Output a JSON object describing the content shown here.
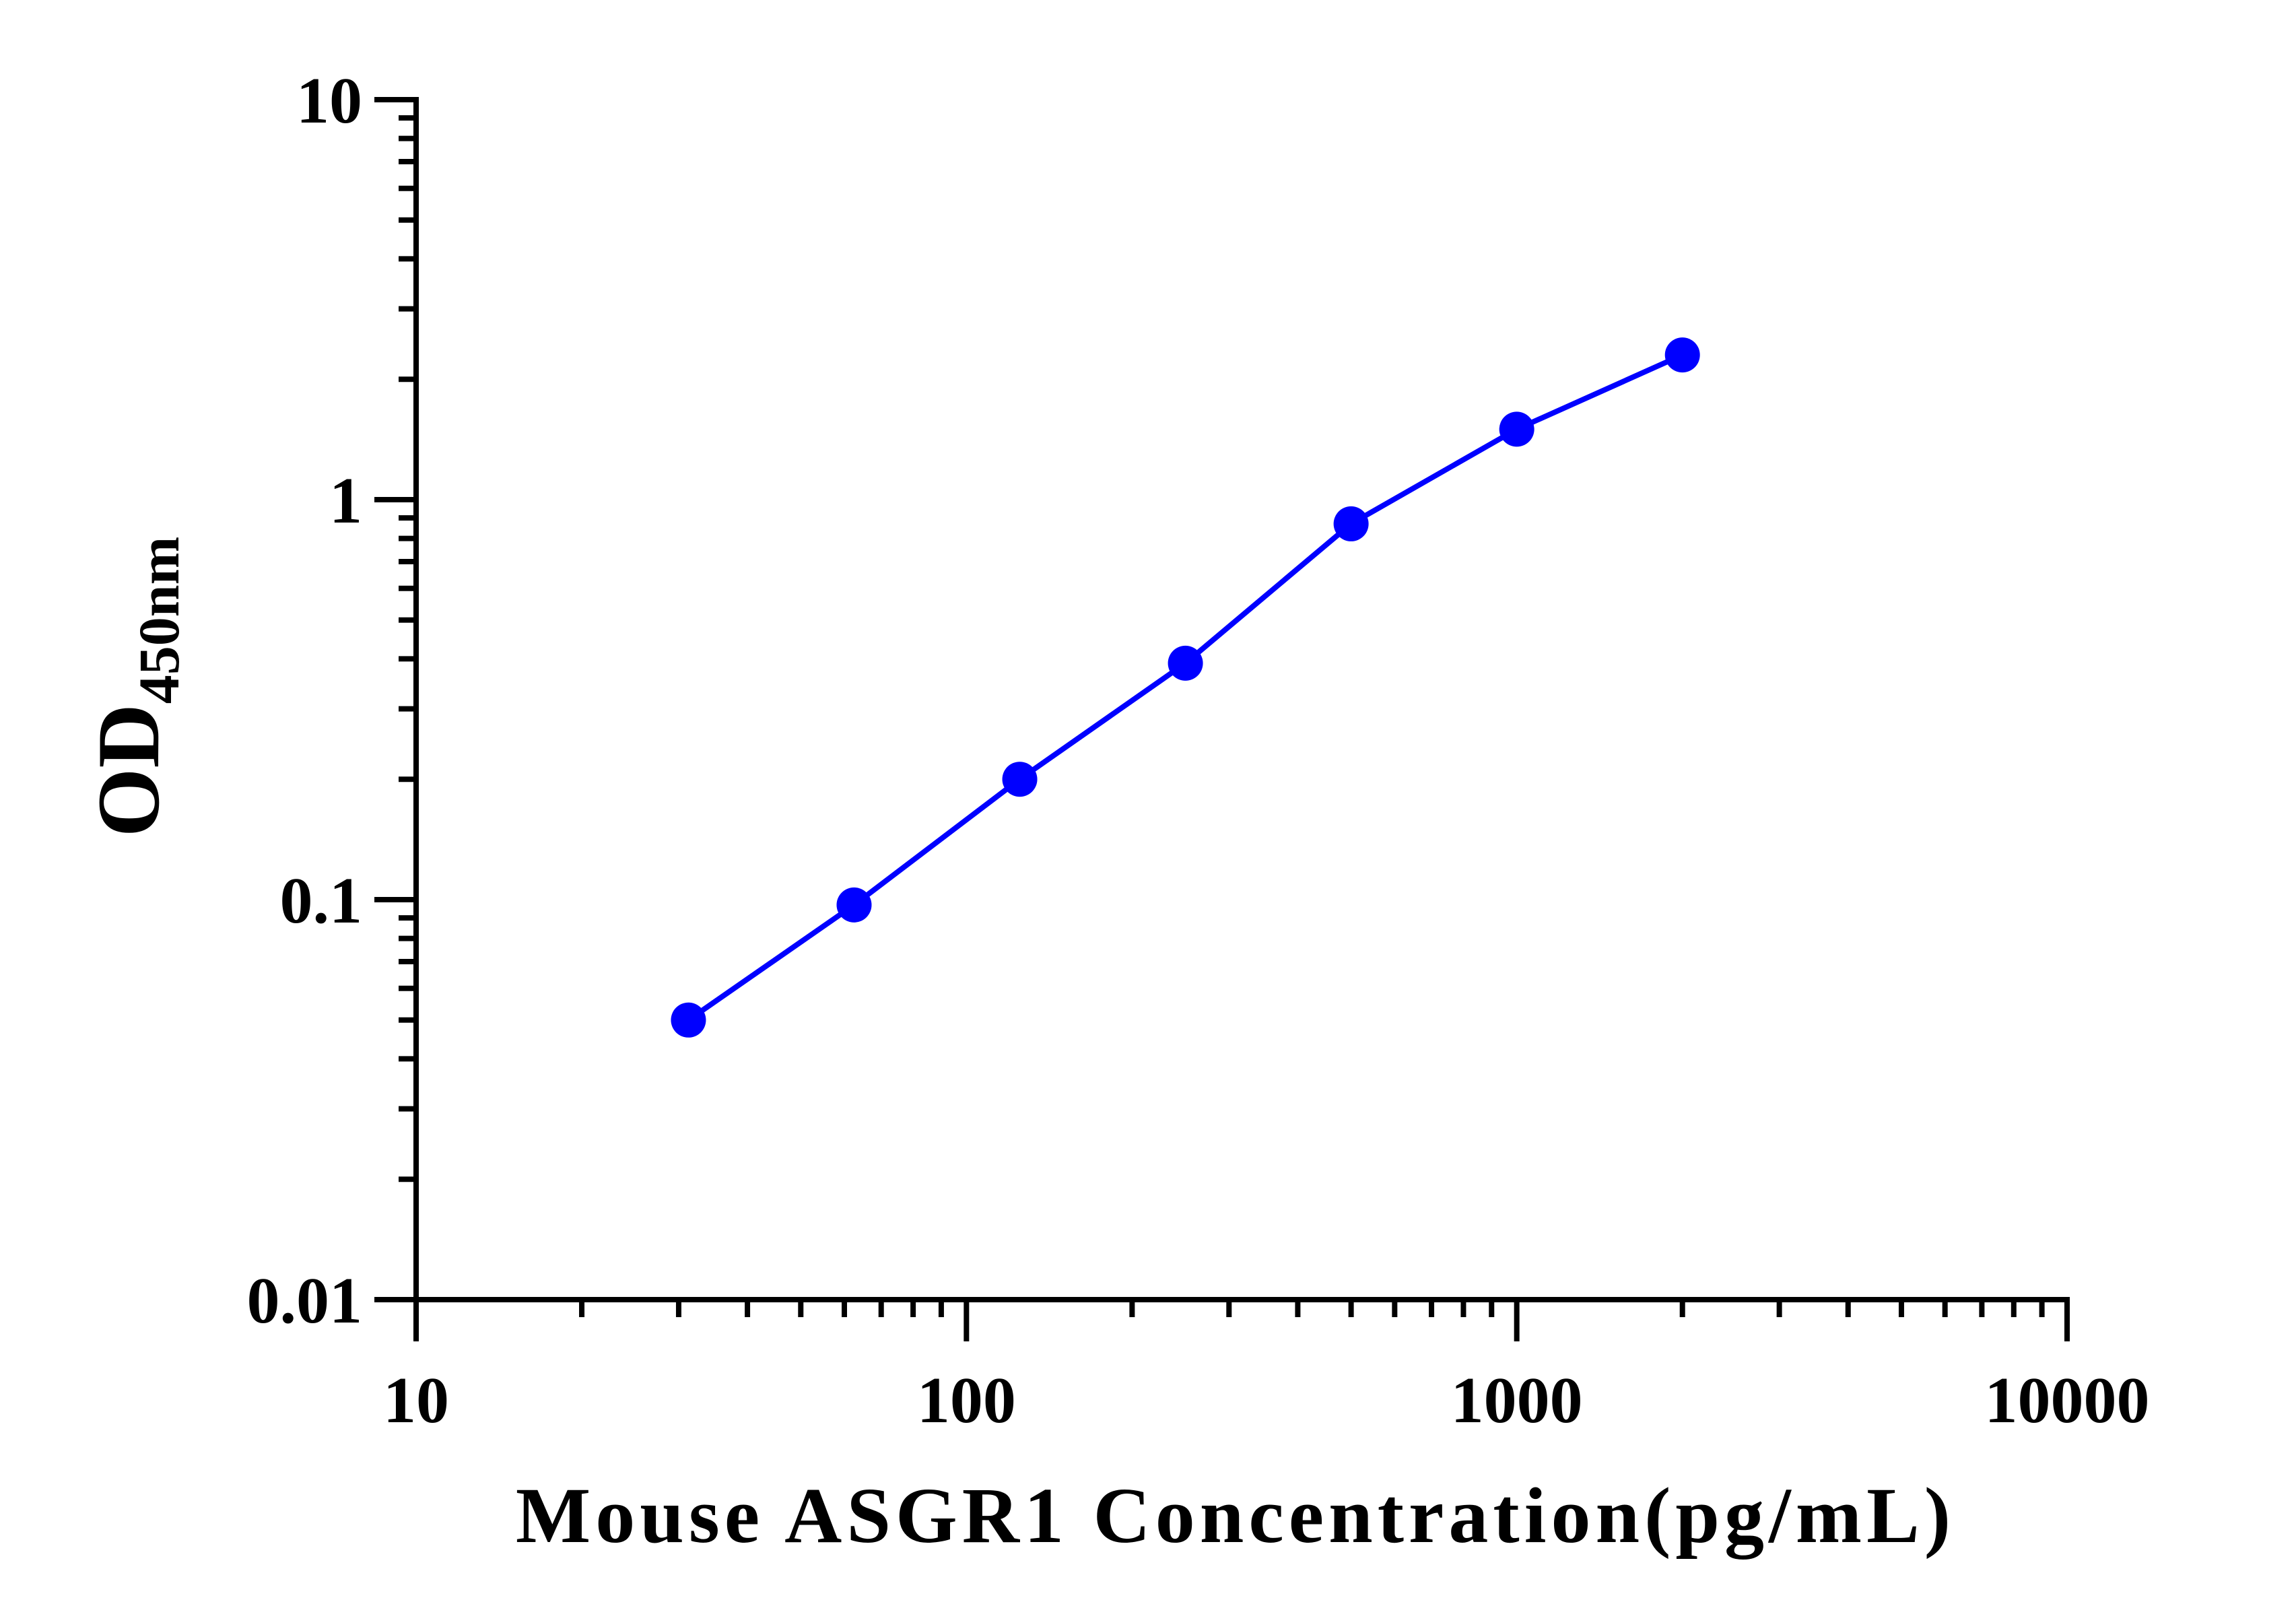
{
  "chart_data": {
    "type": "line",
    "xlabel": "Mouse ASGR1 Concentration(pg/mL)",
    "ylabel": {
      "main": "OD",
      "subscript": "450nm"
    },
    "x_scale": "log",
    "y_scale": "log",
    "xlim": [
      10,
      10000
    ],
    "ylim": [
      0.01,
      10
    ],
    "x_ticks": [
      "10",
      "100",
      "1000",
      "10000"
    ],
    "y_ticks": [
      "0.01",
      "0.1",
      "1",
      "10"
    ],
    "grid": false,
    "legend": "none",
    "series": [
      {
        "color": "#0000ff",
        "x": [
          31.25,
          62.5,
          125,
          250,
          500,
          1000,
          2000
        ],
        "y": [
          0.05,
          0.097,
          0.2,
          0.39,
          0.87,
          1.5,
          2.3
        ]
      }
    ]
  }
}
